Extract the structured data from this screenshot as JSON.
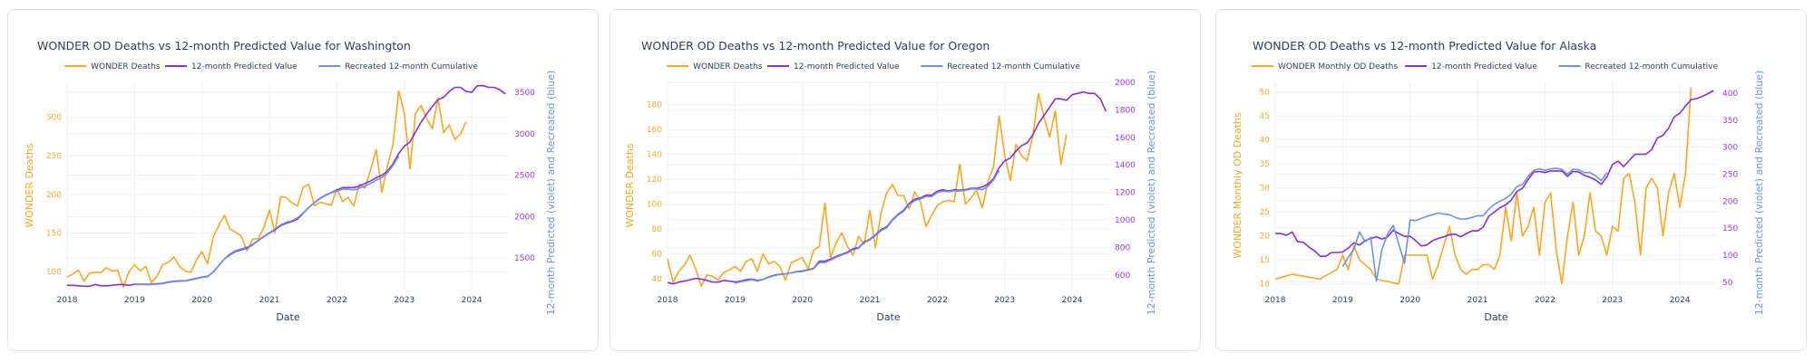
{
  "colors": {
    "wonder": "#ffa51a",
    "predicted": "#8a2be2",
    "recreated": "#6495ed",
    "left_axis": "#ffa51a",
    "right_axis_ticks": "#9b30ff",
    "right_axis_title": "#6495ed",
    "title": "#2a3f5f"
  },
  "chart_data": [
    {
      "type": "line",
      "title": "WONDER OD Deaths vs 12-month Predicted Value for Washington",
      "xlabel": "Date",
      "ylabel": "WONDER Deaths",
      "y2label": "12-month Predicted (violet) and Recreated (blue)",
      "x_ticks": [
        "2018",
        "2019",
        "2020",
        "2021",
        "2022",
        "2023",
        "2024"
      ],
      "x_start": "2018-01",
      "x_range_years": [
        2018,
        2024.55
      ],
      "ylim": [
        78,
        345
      ],
      "y_ticks": [
        100,
        150,
        200,
        250,
        300
      ],
      "y2lim": [
        1130,
        3620
      ],
      "y2_ticks": [
        1500,
        2000,
        2500,
        3000,
        3500
      ],
      "legend": [
        "WONDER Deaths",
        "12-month Predicted Value",
        "Recreated 12-month Cumulative"
      ],
      "legend_position": "top-center",
      "grid": true,
      "series": [
        {
          "name": "WONDER Deaths",
          "axis": "y",
          "start": "2018-01",
          "values": [
            93,
            97,
            102,
            88,
            98,
            99,
            99,
            105,
            101,
            102,
            80,
            100,
            109,
            101,
            107,
            86,
            94,
            109,
            112,
            119,
            107,
            101,
            99,
            115,
            126,
            110,
            145,
            160,
            173,
            155,
            151,
            146,
            127,
            142,
            143,
            157,
            180,
            150,
            197,
            196,
            189,
            185,
            209,
            213,
            185,
            190,
            188,
            186,
            207,
            191,
            196,
            185,
            213,
            208,
            232,
            258,
            203,
            237,
            265,
            334,
            305,
            233,
            305,
            315,
            298,
            285,
            325,
            280,
            290,
            271,
            278,
            294
          ]
        },
        {
          "name": "12-month Predicted Value",
          "axis": "y2",
          "start": "2018-01",
          "values": [
            1170,
            1170,
            1165,
            1160,
            1160,
            1180,
            1165,
            1165,
            1170,
            1180,
            1180,
            1170,
            1185,
            1185,
            1185,
            1185,
            1190,
            1195,
            1210,
            1220,
            1225,
            1225,
            1240,
            1255,
            1270,
            1280,
            1330,
            1410,
            1490,
            1540,
            1580,
            1600,
            1620,
            1660,
            1710,
            1760,
            1800,
            1840,
            1890,
            1920,
            1940,
            1970,
            2040,
            2110,
            2170,
            2220,
            2260,
            2290,
            2320,
            2350,
            2350,
            2350,
            2370,
            2400,
            2430,
            2470,
            2500,
            2550,
            2640,
            2760,
            2850,
            2900,
            3020,
            3140,
            3240,
            3330,
            3410,
            3440,
            3510,
            3560,
            3560,
            3510,
            3500,
            3580,
            3580,
            3560,
            3560,
            3530,
            3480
          ]
        },
        {
          "name": "Recreated 12-month Cumulative",
          "axis": "y2",
          "start": "2019-01",
          "values": [
            1180,
            1180,
            1180,
            1180,
            1185,
            1190,
            1205,
            1215,
            1220,
            1225,
            1235,
            1250,
            1265,
            1275,
            1330,
            1410,
            1490,
            1550,
            1590,
            1610,
            1630,
            1665,
            1715,
            1765,
            1805,
            1850,
            1900,
            1930,
            1950,
            1985,
            2045,
            2110,
            2170,
            2215,
            2255,
            2285,
            2310,
            2330,
            2330,
            2320,
            2345,
            2370,
            2400,
            2440,
            2470,
            2530,
            2620,
            2730
          ]
        }
      ]
    },
    {
      "type": "line",
      "title": "WONDER OD Deaths vs 12-month Predicted Value for Oregon",
      "xlabel": "Date",
      "ylabel": "WONDER Deaths",
      "y2label": "12-month Predicted (violet) and Recreated (blue)",
      "x_ticks": [
        "2018",
        "2019",
        "2020",
        "2021",
        "2022",
        "2023",
        "2024"
      ],
      "x_start": "2018-01",
      "x_range_years": [
        2018,
        2024.55
      ],
      "ylim": [
        32,
        198
      ],
      "y_ticks": [
        40,
        60,
        80,
        100,
        120,
        140,
        160,
        180
      ],
      "y2lim": [
        500,
        2000
      ],
      "y2_ticks": [
        600,
        800,
        1000,
        1200,
        1400,
        1600,
        1800,
        2000
      ],
      "legend": [
        "WONDER Deaths",
        "12-month Predicted Value",
        "Recreated 12-month Cumulative"
      ],
      "legend_position": "top-center",
      "grid": true,
      "series": [
        {
          "name": "WONDER Deaths",
          "axis": "y",
          "start": "2018-01",
          "values": [
            56,
            37,
            46,
            51,
            59,
            48,
            34,
            43,
            42,
            39,
            45,
            47,
            50,
            46,
            54,
            56,
            46,
            60,
            52,
            54,
            50,
            39,
            53,
            55,
            57,
            48,
            63,
            66,
            101,
            57,
            69,
            77,
            66,
            59,
            74,
            68,
            95,
            65,
            93,
            109,
            116,
            107,
            107,
            96,
            110,
            102,
            82,
            91,
            99,
            102,
            103,
            102,
            132,
            100,
            105,
            111,
            97,
            118,
            130,
            171,
            139,
            119,
            148,
            139,
            135,
            155,
            189,
            170,
            154,
            175,
            132,
            156
          ]
        },
        {
          "name": "12-month Predicted Value",
          "axis": "y2",
          "start": "2018-01",
          "values": [
            545,
            535,
            548,
            555,
            565,
            575,
            570,
            560,
            548,
            548,
            560,
            555,
            548,
            555,
            565,
            570,
            560,
            568,
            585,
            598,
            605,
            608,
            615,
            625,
            628,
            638,
            648,
            700,
            700,
            715,
            735,
            750,
            765,
            790,
            800,
            840,
            860,
            890,
            930,
            950,
            1000,
            1040,
            1070,
            1120,
            1150,
            1160,
            1180,
            1180,
            1210,
            1220,
            1210,
            1220,
            1215,
            1220,
            1230,
            1230,
            1240,
            1260,
            1300,
            1380,
            1430,
            1450,
            1500,
            1540,
            1560,
            1620,
            1700,
            1760,
            1820,
            1880,
            1880,
            1870,
            1910,
            1920,
            1930,
            1920,
            1920,
            1880,
            1790
          ]
        },
        {
          "name": "Recreated 12-month Cumulative",
          "axis": "y2",
          "start": "2019-01",
          "values": [
            540,
            550,
            558,
            565,
            555,
            568,
            582,
            595,
            603,
            608,
            615,
            622,
            625,
            635,
            645,
            690,
            690,
            708,
            728,
            745,
            760,
            782,
            795,
            835,
            855,
            885,
            922,
            942,
            995,
            1035,
            1062,
            1112,
            1140,
            1152,
            1170,
            1170,
            1200,
            1210,
            1205,
            1212,
            1210,
            1215,
            1225,
            1225,
            1220,
            1245,
            1290,
            1360
          ]
        }
      ]
    },
    {
      "type": "line",
      "title": "WONDER OD Deaths vs 12-month Predicted Value for Alaska",
      "xlabel": "Date",
      "ylabel": "WONDER Monthly OD Deaths",
      "y2label": "12-month Predicted (violet) and Recreated (blue)",
      "x_ticks": [
        "2018",
        "2019",
        "2020",
        "2021",
        "2022",
        "2023",
        "2024"
      ],
      "x_start": "2018-01",
      "x_range_years": [
        2018,
        2024.55
      ],
      "ylim": [
        9,
        52
      ],
      "y_ticks": [
        10,
        15,
        20,
        25,
        30,
        35,
        40,
        45,
        50
      ],
      "y2lim": [
        38,
        420
      ],
      "y2_ticks": [
        50,
        100,
        150,
        200,
        250,
        300,
        350,
        400
      ],
      "legend": [
        "WONDER Monthly OD Deaths",
        "12-month Predicted Value",
        "Recreated 12-month Cumulative"
      ],
      "legend_position": "top-center",
      "grid": true,
      "series": [
        {
          "name": "WONDER Monthly OD Deaths",
          "axis": "y",
          "start": "2018-01",
          "values": [
            11,
            11.3,
            11.7,
            12,
            11.8,
            11.6,
            11.4,
            11.2,
            11,
            11.7,
            12.4,
            13,
            16,
            13,
            18,
            15,
            14,
            13,
            11,
            10.7,
            10.5,
            10.2,
            10,
            16,
            16,
            16,
            16,
            16,
            11,
            14,
            18,
            22,
            16,
            13,
            12,
            13,
            13,
            14,
            14,
            13,
            16,
            26,
            19,
            29,
            20,
            22,
            26,
            16,
            27,
            29,
            17,
            10,
            20,
            27,
            16,
            20,
            29,
            21,
            20,
            16,
            22,
            21,
            32,
            33,
            27,
            16,
            30,
            32,
            30,
            20,
            29,
            33,
            26,
            33,
            51
          ]
        },
        {
          "name": "12-month Predicted Value",
          "axis": "y2",
          "start": "2018-01",
          "values": [
            140,
            140,
            137,
            143,
            125,
            124,
            115,
            108,
            98,
            98,
            105,
            105,
            106,
            113,
            123,
            119,
            127,
            131,
            134,
            130,
            134,
            146,
            140,
            135,
            135,
            127,
            117,
            119,
            127,
            131,
            134,
            138,
            139,
            134,
            140,
            145,
            145,
            152,
            172,
            180,
            188,
            193,
            202,
            218,
            224,
            240,
            254,
            255,
            253,
            256,
            256,
            256,
            246,
            255,
            254,
            248,
            244,
            239,
            231,
            245,
            268,
            274,
            264,
            275,
            287,
            287,
            287,
            296,
            317,
            322,
            335,
            356,
            363,
            376,
            388,
            390,
            394,
            399,
            405
          ]
        },
        {
          "name": "Recreated 12-month Cumulative",
          "axis": "y2",
          "start": "2019-01",
          "values": [
            79,
            96,
            111,
            143,
            125,
            133,
            52,
            111,
            139,
            155,
            120,
            85,
            165,
            164,
            168,
            172,
            175,
            178,
            176,
            175,
            170,
            167,
            167,
            170,
            173,
            173,
            185,
            194,
            200,
            205,
            213,
            227,
            231,
            246,
            257,
            260,
            257,
            260,
            261,
            259,
            250,
            259,
            258,
            253,
            253,
            247,
            238,
            253
          ]
        }
      ]
    }
  ]
}
